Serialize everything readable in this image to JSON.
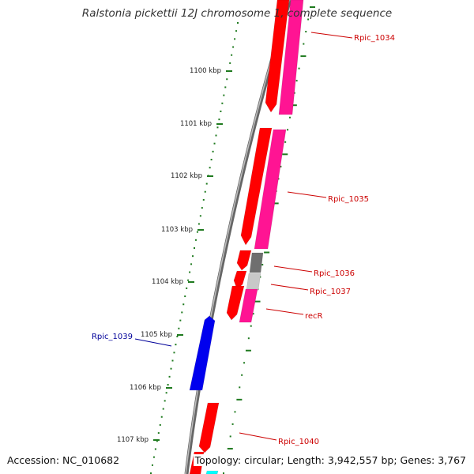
{
  "title": "Ralstonia pickettii 12J chromosome 1, complete sequence",
  "accession": "Accession: NC_010682",
  "topology": "Topology: circular; Length: 3,942,557 bp; Genes: 3,767",
  "colors": {
    "backbone": "#7a7a7a",
    "tick": "#1f7a1f",
    "gene_red": "#ff0000",
    "gene_magenta": "#ff1493",
    "gene_blue": "#0000ee",
    "gene_gray": "#6f6f6f",
    "gene_lightgray": "#c8c8c8",
    "gene_cyan": "#00ffff",
    "label_red": "#cc0000",
    "label_blue": "#000099"
  },
  "scale_labels": [
    "1100 kbp",
    "1101 kbp",
    "1102 kbp",
    "1103 kbp",
    "1104 kbp",
    "1105 kbp",
    "1106 kbp",
    "1107 kbp"
  ],
  "gene_labels": [
    "Rpic_1034",
    "Rpic_1035",
    "Rpic_1036",
    "Rpic_1037",
    "recR",
    "Rpic_1039",
    "Rpic_1040"
  ]
}
